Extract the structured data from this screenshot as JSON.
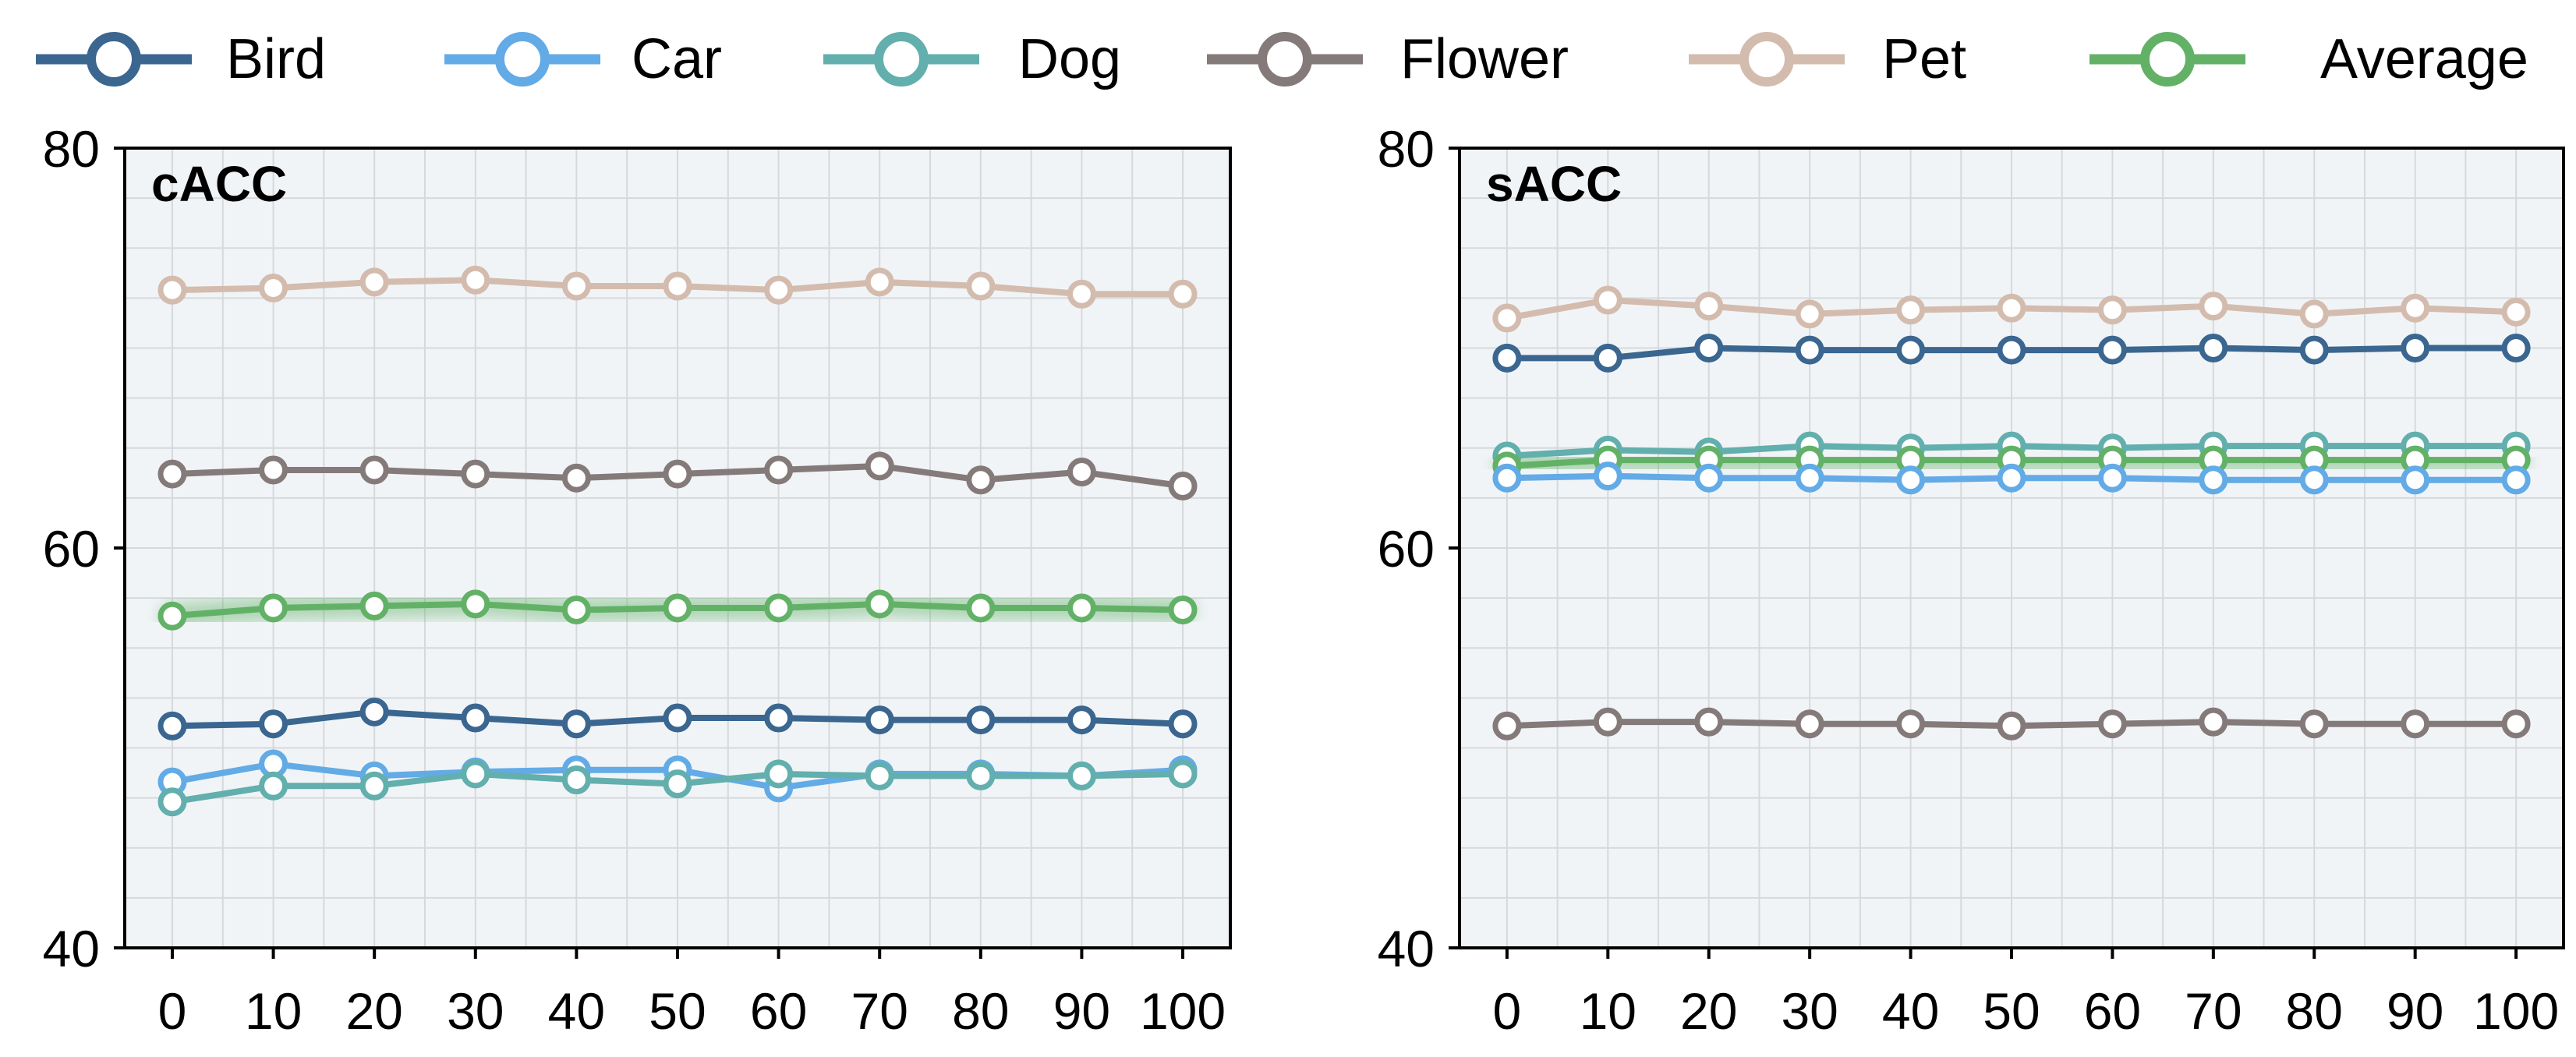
{
  "legend": {
    "position": "top",
    "items": [
      {
        "label": "Bird",
        "color": "#3A6690"
      },
      {
        "label": "Car",
        "color": "#63ABE6"
      },
      {
        "label": "Dog",
        "color": "#62AFAD"
      },
      {
        "label": "Flower",
        "color": "#857A7A"
      },
      {
        "label": "Pet",
        "color": "#D3BCAE"
      },
      {
        "label": "Average",
        "color": "#62B167",
        "glow": true
      }
    ]
  },
  "chart_data": [
    {
      "type": "line",
      "title": "cACC",
      "x": [
        0,
        10,
        20,
        30,
        40,
        50,
        60,
        70,
        80,
        90,
        100
      ],
      "xticks": [
        "0",
        "10",
        "20",
        "30",
        "40",
        "50",
        "60",
        "70",
        "80",
        "90",
        "100"
      ],
      "ylim": [
        40,
        80
      ],
      "yticks": [
        "40",
        "60",
        "80"
      ],
      "grid": true,
      "series": [
        {
          "name": "Pet",
          "values": [
            72.9,
            73.0,
            73.3,
            73.4,
            73.1,
            73.1,
            72.9,
            73.3,
            73.1,
            72.7,
            72.7
          ]
        },
        {
          "name": "Flower",
          "values": [
            63.7,
            63.9,
            63.9,
            63.7,
            63.5,
            63.7,
            63.9,
            64.1,
            63.4,
            63.8,
            63.1
          ]
        },
        {
          "name": "Average",
          "values": [
            56.6,
            57.0,
            57.1,
            57.2,
            56.9,
            57.0,
            57.0,
            57.2,
            57.0,
            57.0,
            56.9
          ]
        },
        {
          "name": "Bird",
          "values": [
            51.1,
            51.2,
            51.8,
            51.5,
            51.2,
            51.5,
            51.5,
            51.4,
            51.4,
            51.4,
            51.2
          ]
        },
        {
          "name": "Car",
          "values": [
            48.3,
            49.2,
            48.6,
            48.8,
            48.9,
            48.9,
            48.0,
            48.7,
            48.7,
            48.6,
            48.9
          ]
        },
        {
          "name": "Dog",
          "values": [
            47.3,
            48.1,
            48.1,
            48.7,
            48.4,
            48.2,
            48.7,
            48.6,
            48.6,
            48.6,
            48.7
          ]
        }
      ]
    },
    {
      "type": "line",
      "title": "sACC",
      "x": [
        0,
        10,
        20,
        30,
        40,
        50,
        60,
        70,
        80,
        90,
        100
      ],
      "xticks": [
        "0",
        "10",
        "20",
        "30",
        "40",
        "50",
        "60",
        "70",
        "80",
        "90",
        "100"
      ],
      "ylim": [
        40,
        80
      ],
      "yticks": [
        "40",
        "60",
        "80"
      ],
      "grid": true,
      "series": [
        {
          "name": "Pet",
          "values": [
            71.5,
            72.4,
            72.1,
            71.7,
            71.9,
            72.0,
            71.9,
            72.1,
            71.7,
            72.0,
            71.8
          ]
        },
        {
          "name": "Bird",
          "values": [
            69.5,
            69.5,
            70.0,
            69.9,
            69.9,
            69.9,
            69.9,
            70.0,
            69.9,
            70.0,
            70.0
          ]
        },
        {
          "name": "Dog",
          "values": [
            64.6,
            64.9,
            64.8,
            65.1,
            65.0,
            65.1,
            65.0,
            65.1,
            65.1,
            65.1,
            65.1
          ]
        },
        {
          "name": "Average",
          "values": [
            64.1,
            64.4,
            64.4,
            64.4,
            64.4,
            64.4,
            64.4,
            64.4,
            64.4,
            64.4,
            64.4
          ]
        },
        {
          "name": "Car",
          "values": [
            63.5,
            63.6,
            63.5,
            63.5,
            63.4,
            63.5,
            63.5,
            63.4,
            63.4,
            63.4,
            63.4
          ]
        },
        {
          "name": "Flower",
          "values": [
            51.1,
            51.3,
            51.3,
            51.2,
            51.2,
            51.1,
            51.2,
            51.3,
            51.2,
            51.2,
            51.2
          ]
        }
      ]
    }
  ]
}
